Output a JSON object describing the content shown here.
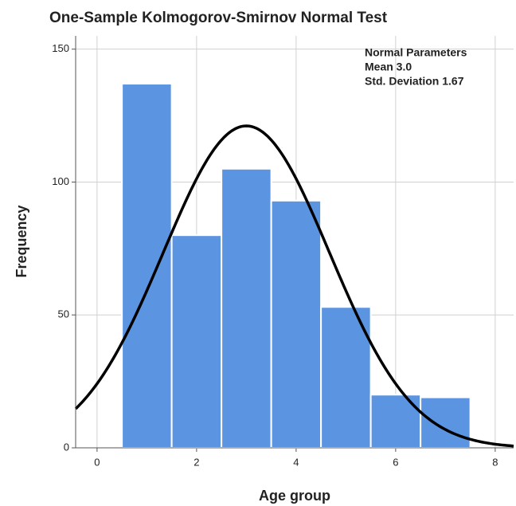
{
  "chart_data": {
    "type": "histogram",
    "title": "One-Sample Kolmogorov-Smirnov Normal Test",
    "xlabel": "Age group",
    "ylabel": "Frequency",
    "bins": [
      0.5,
      1.5,
      2.5,
      3.5,
      4.5,
      5.5,
      6.5,
      7.5
    ],
    "values": [
      137,
      80,
      105,
      93,
      53,
      20,
      19
    ],
    "color": "#5b94e1",
    "curve_color": "#000000",
    "normal": {
      "title": "Normal Parameters",
      "mean": {
        "value": 3.0,
        "label": "Mean 3.0"
      },
      "sd": {
        "value": 1.67,
        "label": "Std. Deviation 1.67"
      }
    },
    "xlim": [
      -0.43,
      8.37
    ],
    "xticks": [
      0,
      2,
      4,
      6,
      8
    ],
    "ylim": [
      0,
      155
    ],
    "yticks": [
      0,
      50,
      100,
      150
    ],
    "grid": true
  }
}
